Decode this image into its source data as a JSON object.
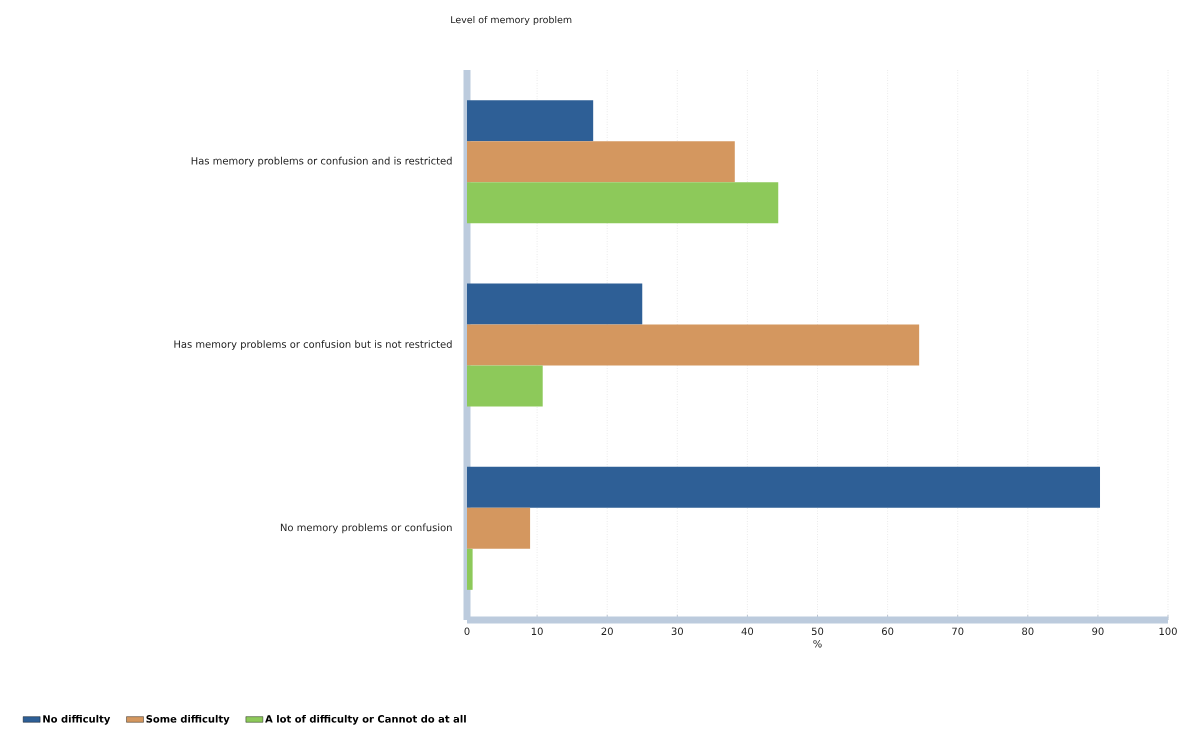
{
  "chart_data": {
    "type": "bar",
    "orientation": "horizontal",
    "ylabel": "Level of memory problem",
    "xlabel": "%",
    "categories": [
      "Has memory problems or confusion and is restricted",
      "Has memory problems or confusion but is not restricted",
      "No memory problems or confusion"
    ],
    "series": [
      {
        "name": "No difficulty",
        "color": "#2e5f96",
        "values": [
          18.0,
          25.0,
          90.3
        ]
      },
      {
        "name": "Some difficulty",
        "color": "#d4975f",
        "values": [
          38.2,
          64.5,
          9.0
        ]
      },
      {
        "name": "A lot of difficulty or Cannot do at all",
        "color": "#8dc95a",
        "values": [
          44.4,
          10.8,
          0.8
        ]
      }
    ],
    "xlim": [
      0,
      100
    ],
    "xticks": [
      0,
      10,
      20,
      30,
      40,
      50,
      60,
      70,
      80,
      90,
      100
    ],
    "grid": "x",
    "legend": "bottom left"
  }
}
